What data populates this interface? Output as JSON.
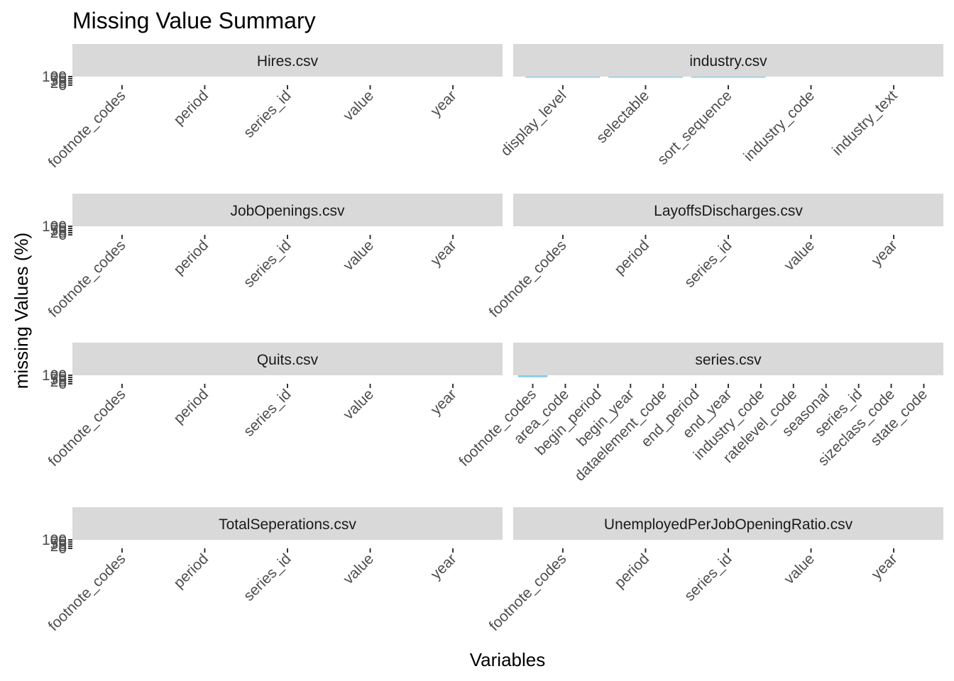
{
  "chart_data": {
    "type": "bar",
    "title": "Missing Value Summary",
    "xlabel": "Variables",
    "ylabel": "missing Values (%)",
    "y_ticks": [
      "0",
      "25",
      "50",
      "75",
      "100"
    ],
    "ylim": [
      0,
      100
    ],
    "bar_color": "#87CEEB",
    "strip_color": "#D9D9D9",
    "facets": [
      {
        "name": "Hires.csv",
        "categories": [
          "footnote_codes",
          "period",
          "series_id",
          "value",
          "year"
        ],
        "values": [
          0,
          0,
          0,
          0,
          0
        ]
      },
      {
        "name": "industry.csv",
        "categories": [
          "display_level",
          "selectable",
          "sort_sequence",
          "industry_code",
          "industry_text"
        ],
        "values": [
          0.5,
          0.5,
          0.5,
          0,
          0
        ]
      },
      {
        "name": "JobOpenings.csv",
        "categories": [
          "footnote_codes",
          "period",
          "series_id",
          "value",
          "year"
        ],
        "values": [
          0,
          0,
          0,
          0,
          0
        ]
      },
      {
        "name": "LayoffsDischarges.csv",
        "categories": [
          "footnote_codes",
          "period",
          "series_id",
          "value",
          "year"
        ],
        "values": [
          0,
          0,
          0,
          0,
          0
        ]
      },
      {
        "name": "Quits.csv",
        "categories": [
          "footnote_codes",
          "period",
          "series_id",
          "value",
          "year"
        ],
        "values": [
          0,
          0,
          0,
          0,
          0
        ]
      },
      {
        "name": "series.csv",
        "categories": [
          "footnote_codes",
          "area_code",
          "begin_period",
          "begin_year",
          "dataelement_code",
          "end_period",
          "end_year",
          "industry_code",
          "ratelevel_code",
          "seasonal",
          "series_id",
          "sizeclass_code",
          "state_code"
        ],
        "values": [
          3,
          0,
          0,
          0,
          0,
          0,
          0,
          0,
          0,
          0,
          0,
          0,
          0
        ]
      },
      {
        "name": "TotalSeperations.csv",
        "categories": [
          "footnote_codes",
          "period",
          "series_id",
          "value",
          "year"
        ],
        "values": [
          0,
          0,
          0,
          0,
          0
        ]
      },
      {
        "name": "UnemployedPerJobOpeningRatio.csv",
        "categories": [
          "footnote_codes",
          "period",
          "series_id",
          "value",
          "year"
        ],
        "values": [
          0,
          0,
          0,
          0,
          0
        ]
      }
    ]
  }
}
